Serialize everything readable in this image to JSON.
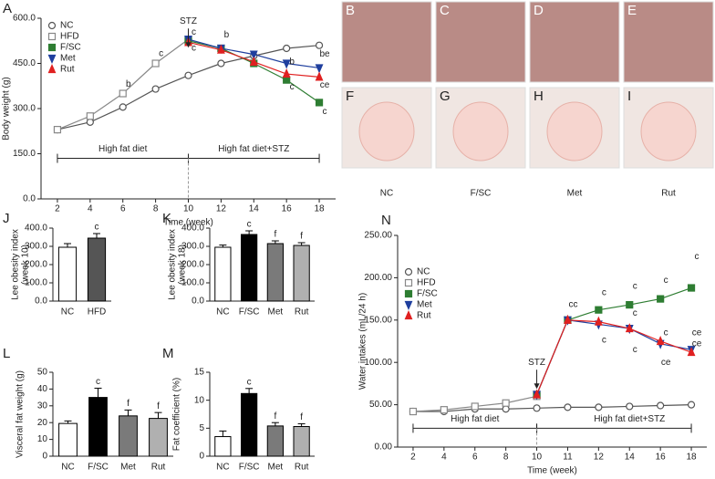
{
  "chart_data": [
    {
      "type": "line",
      "panel": "A",
      "xlabel": "Time (week)",
      "ylabel": [
        "Body weight (g)"
      ],
      "x": [
        2,
        4,
        6,
        8,
        10,
        12,
        14,
        16,
        18
      ],
      "xlim": [
        1,
        19
      ],
      "xticks": [
        2,
        4,
        6,
        8,
        10,
        12,
        14,
        16,
        18
      ],
      "ylim": [
        0,
        600
      ],
      "yticks": [
        {
          "value": 0,
          "label": "0.0"
        },
        {
          "value": 150,
          "label": "150.0"
        },
        {
          "value": 300,
          "label": "300.0"
        },
        {
          "value": 450,
          "label": "450.0"
        },
        {
          "value": 600,
          "label": "600.0"
        }
      ],
      "legend": "upper left",
      "series": [
        {
          "name": "NC",
          "color": "#555555",
          "marker": "circle-open",
          "values": [
            230,
            255,
            305,
            365,
            410,
            450,
            475,
            500,
            510
          ]
        },
        {
          "name": "HFD",
          "color": "#888888",
          "marker": "square-open",
          "values": [
            230,
            275,
            350,
            450,
            530,
            null,
            null,
            null,
            null
          ]
        },
        {
          "name": "F/SC",
          "color": "#2e7d32",
          "marker": "square",
          "values": [
            null,
            null,
            null,
            null,
            525,
            500,
            450,
            395,
            320
          ]
        },
        {
          "name": "Met",
          "color": "#1f3f9e",
          "marker": "triangle-down",
          "values": [
            null,
            null,
            null,
            null,
            530,
            500,
            480,
            450,
            435
          ]
        },
        {
          "name": "Rut",
          "color": "#e02020",
          "marker": "triangle",
          "values": [
            null,
            null,
            null,
            null,
            520,
            495,
            455,
            415,
            405
          ]
        }
      ],
      "annotations": [
        "STZ",
        "High fat diet",
        "High fat diet+STZ",
        "b",
        "c",
        "c",
        "c",
        "b",
        "b",
        "c",
        "be",
        "ce",
        "c"
      ]
    },
    {
      "type": "bar",
      "panel": "J",
      "ylabel": [
        "Lee obesity index",
        "(week 10)"
      ],
      "categories": [
        "NC",
        "HFD"
      ],
      "values": [
        295,
        345
      ],
      "errors": [
        20,
        25
      ],
      "colors": [
        "#ffffff",
        "#555555"
      ],
      "ylim": [
        0,
        400
      ],
      "yticks": [
        {
          "value": 0,
          "label": "0.0"
        },
        {
          "value": 100,
          "label": "100.0"
        },
        {
          "value": 200,
          "label": "200.0"
        },
        {
          "value": 300,
          "label": "300.0"
        },
        {
          "value": 400,
          "label": "400.0"
        }
      ],
      "annotations": [
        "c"
      ]
    },
    {
      "type": "bar",
      "panel": "K",
      "ylabel": [
        "Lee obesity index",
        "(week 18)"
      ],
      "categories": [
        "NC",
        "F/SC",
        "Met",
        "Rut"
      ],
      "values": [
        295,
        365,
        315,
        305
      ],
      "errors": [
        12,
        20,
        15,
        15
      ],
      "colors": [
        "#ffffff",
        "#000000",
        "#7a7a7a",
        "#b0b0b0"
      ],
      "ylim": [
        0,
        400
      ],
      "yticks": [
        {
          "value": 0,
          "label": "0.0"
        },
        {
          "value": 100,
          "label": "100.0"
        },
        {
          "value": 200,
          "label": "200.0"
        },
        {
          "value": 300,
          "label": "300.0"
        },
        {
          "value": 400,
          "label": "400.0"
        }
      ],
      "annotations": [
        "c",
        "f",
        "f"
      ]
    },
    {
      "type": "bar",
      "panel": "L",
      "ylabel": [
        "Visceral fat weight (g)"
      ],
      "categories": [
        "NC",
        "F/SC",
        "Met",
        "Rut"
      ],
      "values": [
        19.5,
        35,
        24,
        22.5
      ],
      "errors": [
        1.5,
        5.5,
        3.5,
        3.5
      ],
      "colors": [
        "#ffffff",
        "#000000",
        "#7a7a7a",
        "#b0b0b0"
      ],
      "ylim": [
        0,
        50
      ],
      "yticks": [
        0,
        10,
        20,
        30,
        40,
        50
      ],
      "annotations": [
        "c",
        "f",
        "f"
      ]
    },
    {
      "type": "bar",
      "panel": "M",
      "ylabel": [
        "Fat coefficient (%)"
      ],
      "categories": [
        "NC",
        "F/SC",
        "Met",
        "Rut"
      ],
      "values": [
        3.5,
        11.2,
        5.4,
        5.3
      ],
      "errors": [
        1,
        0.9,
        0.6,
        0.5
      ],
      "colors": [
        "#ffffff",
        "#000000",
        "#7a7a7a",
        "#b0b0b0"
      ],
      "ylim": [
        0,
        15
      ],
      "yticks": [
        0,
        5,
        10,
        15
      ],
      "annotations": [
        "c",
        "f",
        "f"
      ]
    },
    {
      "type": "line",
      "panel": "N",
      "xlabel": "Time (week)",
      "ylabel": [
        "Water intakes (mL/24 h)"
      ],
      "categories": [
        "2",
        "4",
        "6",
        "8",
        "10",
        "11",
        "12",
        "14",
        "16",
        "18"
      ],
      "ylim": [
        0,
        250
      ],
      "yticks": [
        {
          "value": 0,
          "label": "0.00"
        },
        {
          "value": 50,
          "label": "50.00"
        },
        {
          "value": 100,
          "label": "100.00"
        },
        {
          "value": 150,
          "label": "150.00"
        },
        {
          "value": 200,
          "label": "200.00"
        },
        {
          "value": 250,
          "label": "250.00"
        }
      ],
      "legend": "center left",
      "series": [
        {
          "name": "NC",
          "color": "#555555",
          "marker": "circle-open",
          "values": [
            42,
            42,
            45,
            45,
            46,
            47,
            47,
            48,
            49,
            50
          ]
        },
        {
          "name": "HFD",
          "color": "#888888",
          "marker": "square-open",
          "values": [
            42,
            44,
            48,
            52,
            60,
            null,
            null,
            null,
            null,
            null
          ]
        },
        {
          "name": "F/SC",
          "color": "#2e7d32",
          "marker": "square",
          "values": [
            null,
            null,
            null,
            null,
            62,
            150,
            162,
            168,
            175,
            188
          ]
        },
        {
          "name": "Met",
          "color": "#1f3f9e",
          "marker": "triangle-down",
          "values": [
            null,
            null,
            null,
            null,
            62,
            150,
            145,
            140,
            122,
            115
          ]
        },
        {
          "name": "Rut",
          "color": "#e02020",
          "marker": "triangle",
          "values": [
            null,
            null,
            null,
            null,
            62,
            150,
            148,
            140,
            125,
            112
          ]
        }
      ],
      "annotations": [
        "STZ",
        "High fat diet",
        "High fat diet+STZ",
        "cc",
        "c",
        "c",
        "c",
        "c",
        "c",
        "c",
        "c",
        "ce",
        "c",
        "ce",
        "ce"
      ]
    }
  ],
  "photos": {
    "panels": [
      "B",
      "C",
      "D",
      "E",
      "F",
      "G",
      "H",
      "I"
    ],
    "captions": [
      "NC",
      "F/SC",
      "Met",
      "Rut"
    ]
  }
}
